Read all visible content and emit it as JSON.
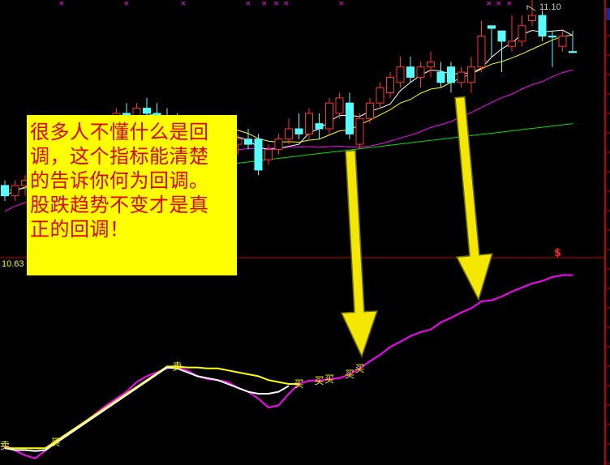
{
  "annotation": {
    "lines": [
      "很多人不懂什么是回",
      "调，这个指标能清楚",
      "的告诉你何为回调。",
      "股跌趋势不变才是真",
      "正的回调！"
    ]
  },
  "chart_data": [
    {
      "type": "candlestick",
      "title": "",
      "price_high_label": "11.10",
      "price_low_label": "10.63",
      "ylim": [
        10.63,
        11.13
      ],
      "colors": {
        "up": "#ff3030",
        "down": "#54ffff",
        "ma_short": "#ffffff",
        "ma_mid": "#ffff00",
        "ma_long": "#ff00ff",
        "ma_very_long": "#00e000",
        "price_line": "#c00000"
      },
      "candles_ohlc": [
        [
          10.77,
          10.78,
          10.74,
          10.75
        ],
        [
          10.75,
          10.78,
          10.74,
          10.77
        ],
        [
          10.77,
          10.79,
          10.75,
          10.78
        ],
        [
          10.78,
          10.8,
          10.76,
          10.79
        ],
        [
          10.79,
          10.82,
          10.78,
          10.81
        ],
        [
          10.81,
          10.83,
          10.79,
          10.8
        ],
        [
          10.8,
          10.84,
          10.79,
          10.83
        ],
        [
          10.83,
          10.86,
          10.82,
          10.85
        ],
        [
          10.85,
          10.87,
          10.83,
          10.84
        ],
        [
          10.84,
          10.88,
          10.83,
          10.87
        ],
        [
          10.87,
          10.9,
          10.86,
          10.89
        ],
        [
          10.89,
          10.92,
          10.88,
          10.91
        ],
        [
          10.91,
          10.93,
          10.89,
          10.9
        ],
        [
          10.9,
          10.93,
          10.89,
          10.92
        ],
        [
          10.92,
          10.94,
          10.9,
          10.91
        ],
        [
          10.91,
          10.93,
          10.89,
          10.9
        ],
        [
          10.9,
          10.92,
          10.88,
          10.89
        ],
        [
          10.89,
          10.91,
          10.87,
          10.88
        ],
        [
          10.88,
          10.9,
          10.86,
          10.87
        ],
        [
          10.87,
          10.89,
          10.85,
          10.88
        ],
        [
          10.88,
          10.9,
          10.86,
          10.87
        ],
        [
          10.87,
          10.89,
          10.85,
          10.86
        ],
        [
          10.86,
          10.88,
          10.84,
          10.85
        ],
        [
          10.85,
          10.87,
          10.83,
          10.86
        ],
        [
          10.86,
          10.88,
          10.84,
          10.85
        ],
        [
          10.86,
          10.87,
          10.79,
          10.8
        ],
        [
          10.82,
          10.85,
          10.81,
          10.84
        ],
        [
          10.84,
          10.87,
          10.83,
          10.86
        ],
        [
          10.86,
          10.9,
          10.85,
          10.88
        ],
        [
          10.88,
          10.91,
          10.86,
          10.87
        ],
        [
          10.87,
          10.92,
          10.86,
          10.91
        ],
        [
          10.89,
          10.91,
          10.86,
          10.88
        ],
        [
          10.88,
          10.94,
          10.87,
          10.93
        ],
        [
          10.91,
          10.95,
          10.9,
          10.94
        ],
        [
          10.93,
          10.95,
          10.86,
          10.87
        ],
        [
          10.85,
          10.91,
          10.84,
          10.9
        ],
        [
          10.9,
          10.94,
          10.89,
          10.93
        ],
        [
          10.93,
          10.97,
          10.92,
          10.96
        ],
        [
          10.95,
          10.99,
          10.94,
          10.98
        ],
        [
          10.97,
          11.02,
          10.96,
          11.0
        ],
        [
          11.0,
          11.02,
          10.97,
          10.98
        ],
        [
          10.98,
          11.01,
          10.96,
          11.0
        ],
        [
          11.0,
          11.03,
          10.98,
          11.01
        ],
        [
          10.99,
          11.01,
          10.96,
          10.97
        ],
        [
          11.0,
          11.01,
          10.95,
          10.97
        ],
        [
          10.97,
          11.0,
          10.96,
          10.99
        ],
        [
          10.97,
          11.02,
          10.95,
          11.0
        ],
        [
          11.0,
          11.09,
          10.99,
          11.06
        ],
        [
          11.08,
          11.08,
          11.02,
          11.075
        ],
        [
          11.07,
          11.07,
          10.99,
          11.05
        ],
        [
          11.04,
          11.1,
          11.03,
          11.05
        ],
        [
          11.05,
          11.1,
          11.04,
          11.08
        ],
        [
          11.09,
          11.13,
          11.08,
          11.1
        ],
        [
          11.1,
          11.11,
          11.05,
          11.06
        ],
        [
          11.06,
          11.07,
          11.0,
          11.058
        ],
        [
          11.04,
          11.07,
          11.03,
          11.06
        ],
        [
          11.03,
          11.07,
          11.03,
          11.028
        ]
      ],
      "ma_very_long_range": [
        10.77,
        10.9
      ]
    },
    {
      "type": "line",
      "title": "",
      "ylim": [
        0,
        100
      ],
      "series": [
        {
          "color": "#ff00ff",
          "values": [
            8.3,
            5.8,
            3.3,
            1.7,
            5.8,
            10,
            13,
            16.7,
            20.8,
            25,
            29,
            32.5,
            36,
            41,
            44,
            46,
            48,
            49,
            47,
            44,
            42.5,
            42,
            41,
            38,
            36,
            32.5,
            27.9,
            29,
            35,
            40,
            41.7,
            41.7,
            42.5,
            43,
            45,
            47.9,
            51.7,
            55,
            59,
            61.7,
            64.6,
            66.7,
            68,
            71.7,
            74,
            76.7,
            79,
            82.5,
            83,
            85,
            87.5,
            89.6,
            91.7,
            93,
            95,
            96,
            96
          ]
        },
        {
          "color": "#ffff00",
          "values": [
            7,
            7,
            7,
            7,
            7,
            null,
            null,
            null,
            null,
            null,
            null,
            null,
            null,
            null,
            null,
            null,
            49,
            49,
            48.5,
            48.5,
            48,
            48,
            47,
            46,
            45,
            44,
            42,
            41,
            40,
            40,
            null,
            null,
            null,
            null,
            null,
            null,
            null,
            null,
            null,
            null,
            null,
            null,
            null,
            null,
            null,
            null,
            null,
            null,
            null,
            null,
            null,
            null,
            null,
            null,
            null,
            null,
            null
          ]
        },
        {
          "color": "#ffffff",
          "values": [
            7,
            6,
            6,
            5.5,
            6,
            null,
            null,
            null,
            null,
            null,
            null,
            null,
            null,
            null,
            null,
            null,
            48.5,
            48,
            46,
            44,
            43,
            42,
            40,
            38,
            36,
            35,
            35,
            36,
            39,
            null,
            null,
            null,
            null,
            null,
            null,
            null,
            null,
            null,
            null,
            null,
            null,
            null,
            null,
            null,
            null,
            null,
            null,
            null,
            null,
            null,
            null,
            null,
            null,
            null,
            null,
            null,
            null
          ]
        }
      ],
      "signals": [
        {
          "index": 0,
          "label": "卖"
        },
        {
          "index": 5,
          "label": "买"
        },
        {
          "index": 17,
          "label": "卖"
        },
        {
          "index": 29,
          "label": "买"
        },
        {
          "index": 31,
          "label": "买"
        },
        {
          "index": 32,
          "label": "买"
        },
        {
          "index": 34,
          "label": "买"
        },
        {
          "index": 35,
          "label": "买"
        }
      ]
    }
  ]
}
